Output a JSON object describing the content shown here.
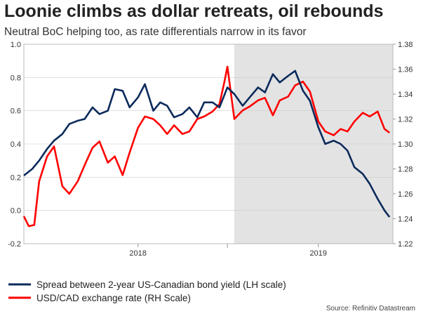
{
  "header": {
    "title": "Loonie climbs as dollar retreats, oil rebounds",
    "subtitle": "Neutral BoC helping too, as rate differentials narrow in its favor"
  },
  "source": "Source: Refinitiv Datastream",
  "colors": {
    "spread": "#0b2a5b",
    "usdcad": "#ff0000",
    "shade": "#e3e3e3",
    "grid": "#cccccc"
  },
  "chart_data": {
    "type": "line",
    "x_tick_labels": [
      "2018",
      "2019"
    ],
    "x_domain": [
      "2017-05-15",
      "2019-06-01"
    ],
    "shaded_region": [
      "2018-07-15",
      "2019-06-01"
    ],
    "y_left": {
      "lim": [
        -0.2,
        1.0
      ],
      "ticks": [
        "1.0",
        "0.8",
        "0.6",
        "0.4",
        "0.2",
        "0.0",
        "-0.2"
      ]
    },
    "y_right": {
      "lim": [
        1.22,
        1.38
      ],
      "ticks": [
        "1.38",
        "1.36",
        "1.34",
        "1.32",
        "1.30",
        "1.28",
        "1.26",
        "1.24",
        "1.22"
      ]
    },
    "legend_position": "bottom-left",
    "series": [
      {
        "name": "Spread between 2-year US-Canadian bond yield (LH scale)",
        "axis": "left",
        "x": [
          "2017-05-15",
          "2017-06-01",
          "2017-06-15",
          "2017-07-01",
          "2017-07-15",
          "2017-08-01",
          "2017-08-15",
          "2017-09-01",
          "2017-09-15",
          "2017-10-01",
          "2017-10-15",
          "2017-11-01",
          "2017-11-15",
          "2017-12-01",
          "2017-12-15",
          "2018-01-01",
          "2018-01-15",
          "2018-02-01",
          "2018-02-15",
          "2018-03-01",
          "2018-03-15",
          "2018-04-01",
          "2018-04-15",
          "2018-05-01",
          "2018-05-15",
          "2018-06-01",
          "2018-06-15",
          "2018-07-01",
          "2018-07-15",
          "2018-08-01",
          "2018-08-15",
          "2018-09-01",
          "2018-09-15",
          "2018-10-01",
          "2018-10-15",
          "2018-11-01",
          "2018-11-15",
          "2018-12-01",
          "2018-12-15",
          "2019-01-01",
          "2019-01-15",
          "2019-02-01",
          "2019-02-15",
          "2019-03-01",
          "2019-03-15",
          "2019-04-01",
          "2019-04-15",
          "2019-05-01",
          "2019-05-15",
          "2019-05-25"
        ],
        "values": [
          0.21,
          0.25,
          0.3,
          0.37,
          0.42,
          0.46,
          0.52,
          0.54,
          0.55,
          0.62,
          0.58,
          0.6,
          0.73,
          0.72,
          0.62,
          0.68,
          0.76,
          0.6,
          0.65,
          0.63,
          0.56,
          0.58,
          0.62,
          0.56,
          0.65,
          0.65,
          0.62,
          0.74,
          0.7,
          0.63,
          0.68,
          0.74,
          0.71,
          0.82,
          0.77,
          0.81,
          0.84,
          0.72,
          0.66,
          0.5,
          0.4,
          0.42,
          0.4,
          0.36,
          0.26,
          0.22,
          0.16,
          0.07,
          0.0,
          -0.04
        ]
      },
      {
        "name": "USD/CAD exchange rate (RH Scale)",
        "axis": "right",
        "x": [
          "2017-05-15",
          "2017-05-25",
          "2017-06-05",
          "2017-06-15",
          "2017-07-01",
          "2017-07-15",
          "2017-08-01",
          "2017-08-15",
          "2017-09-01",
          "2017-09-15",
          "2017-10-01",
          "2017-10-15",
          "2017-11-01",
          "2017-11-15",
          "2017-12-01",
          "2017-12-15",
          "2018-01-01",
          "2018-01-15",
          "2018-02-01",
          "2018-02-15",
          "2018-03-01",
          "2018-03-15",
          "2018-04-01",
          "2018-04-15",
          "2018-05-01",
          "2018-05-15",
          "2018-06-01",
          "2018-06-15",
          "2018-06-25",
          "2018-07-01",
          "2018-07-15",
          "2018-08-01",
          "2018-08-15",
          "2018-09-01",
          "2018-09-15",
          "2018-10-01",
          "2018-10-15",
          "2018-11-01",
          "2018-11-15",
          "2018-12-01",
          "2018-12-15",
          "2019-01-01",
          "2019-01-15",
          "2019-02-01",
          "2019-02-15",
          "2019-03-01",
          "2019-03-15",
          "2019-04-01",
          "2019-04-15",
          "2019-05-01",
          "2019-05-15",
          "2019-05-25"
        ],
        "values": [
          1.242,
          1.234,
          1.235,
          1.27,
          1.29,
          1.298,
          1.266,
          1.26,
          1.27,
          1.283,
          1.297,
          1.302,
          1.285,
          1.29,
          1.275,
          1.293,
          1.313,
          1.322,
          1.32,
          1.315,
          1.308,
          1.315,
          1.308,
          1.31,
          1.32,
          1.322,
          1.326,
          1.332,
          1.35,
          1.362,
          1.32,
          1.327,
          1.33,
          1.335,
          1.337,
          1.323,
          1.335,
          1.338,
          1.347,
          1.35,
          1.342,
          1.318,
          1.31,
          1.307,
          1.312,
          1.31,
          1.318,
          1.325,
          1.322,
          1.326,
          1.312,
          1.309
        ]
      }
    ]
  }
}
